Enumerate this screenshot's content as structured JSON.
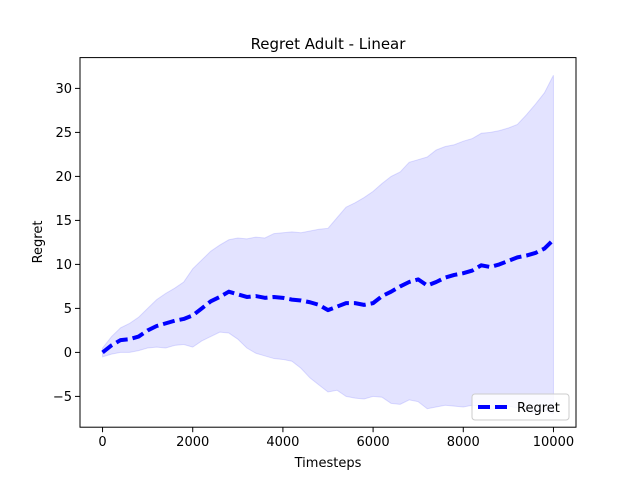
{
  "chart_data": {
    "type": "line",
    "title": "Regret Adult - Linear",
    "xlabel": "Timesteps",
    "ylabel": "Regret",
    "xlim": [
      -500,
      10500
    ],
    "ylim": [
      -8.5,
      33.5
    ],
    "xticks": [
      0,
      2000,
      4000,
      6000,
      8000,
      10000
    ],
    "yticks": [
      -5,
      0,
      5,
      10,
      15,
      20,
      25,
      30
    ],
    "xtick_labels": [
      "0",
      "2000",
      "4000",
      "6000",
      "8000",
      "10000"
    ],
    "ytick_labels": [
      "−5",
      "0",
      "5",
      "10",
      "15",
      "20",
      "25",
      "30"
    ],
    "grid": false,
    "legend_position": "lower-right",
    "series": [
      {
        "name": "Regret",
        "color": "#0000ff",
        "line_style": "dashed",
        "x": [
          0,
          200,
          400,
          600,
          800,
          1000,
          1200,
          1400,
          1600,
          1800,
          2000,
          2200,
          2400,
          2600,
          2800,
          3000,
          3200,
          3400,
          3600,
          3800,
          4000,
          4200,
          4400,
          4600,
          4800,
          5000,
          5200,
          5400,
          5600,
          5800,
          6000,
          6200,
          6400,
          6600,
          6800,
          7000,
          7200,
          7400,
          7600,
          7800,
          8000,
          8200,
          8400,
          8600,
          8800,
          9000,
          9200,
          9400,
          9600,
          9800,
          10000
        ],
        "y": [
          0.0,
          0.8,
          1.4,
          1.5,
          1.8,
          2.5,
          3.0,
          3.3,
          3.6,
          3.8,
          4.2,
          5.0,
          5.8,
          6.3,
          6.9,
          6.6,
          6.3,
          6.4,
          6.2,
          6.3,
          6.2,
          6.0,
          5.9,
          5.7,
          5.4,
          4.8,
          5.2,
          5.6,
          5.6,
          5.4,
          5.6,
          6.4,
          6.9,
          7.5,
          8.0,
          8.3,
          7.6,
          8.0,
          8.5,
          8.8,
          9.0,
          9.3,
          9.9,
          9.7,
          10.0,
          10.4,
          10.8,
          11.0,
          11.3,
          11.8,
          12.8
        ],
        "band_upper": [
          0.5,
          1.8,
          2.8,
          3.3,
          4.0,
          5.0,
          6.0,
          6.7,
          7.3,
          8.0,
          9.5,
          10.5,
          11.5,
          12.2,
          12.8,
          13.0,
          12.9,
          13.1,
          13.0,
          13.5,
          13.6,
          13.7,
          13.6,
          13.8,
          14.0,
          14.1,
          15.3,
          16.5,
          17.0,
          17.6,
          18.3,
          19.2,
          20.0,
          20.5,
          21.6,
          21.9,
          22.2,
          23.0,
          23.4,
          23.6,
          24.0,
          24.3,
          24.9,
          25.0,
          25.2,
          25.5,
          25.9,
          27.0,
          28.2,
          29.5,
          31.5
        ],
        "band_lower": [
          -0.5,
          -0.2,
          0.0,
          0.0,
          0.2,
          0.5,
          0.6,
          0.5,
          0.8,
          0.9,
          0.6,
          1.3,
          1.8,
          2.3,
          2.2,
          1.5,
          0.5,
          -0.1,
          -0.4,
          -0.7,
          -0.8,
          -1.0,
          -1.8,
          -2.9,
          -3.7,
          -4.5,
          -4.3,
          -5.0,
          -5.2,
          -5.3,
          -5.0,
          -5.1,
          -5.8,
          -5.9,
          -5.4,
          -5.6,
          -6.4,
          -6.2,
          -6.0,
          -6.1,
          -6.2,
          -6.0,
          -6.1,
          -6.5,
          -6.3,
          -6.1,
          -6.3,
          -6.6,
          -6.9,
          -6.5,
          -7.0
        ],
        "band_color": "#0000ff"
      }
    ]
  }
}
